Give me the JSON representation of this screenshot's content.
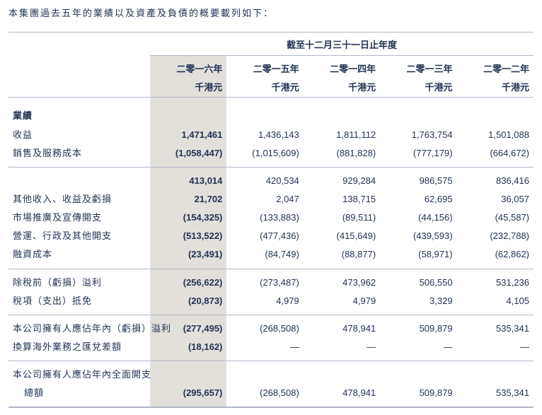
{
  "intro": "本集團過去五年的業績以及資產及負債的概要載列如下：",
  "table": {
    "super_header": "截至十二月三十一日止年度",
    "col_headers": [
      "二零一六年",
      "二零一五年",
      "二零一四年",
      "二零一三年",
      "二零一二年"
    ],
    "unit": "千港元",
    "highlight_col_index": 0,
    "styling": {
      "text_color": "#223355",
      "border_color": "#b0b6c8",
      "highlight_bg": "#e3e0db",
      "font_size_pt": 10,
      "bold_first_data_col": true
    },
    "rows": [
      {
        "type": "spacer"
      },
      {
        "type": "section",
        "label": "業績"
      },
      {
        "label": "收益",
        "values": [
          "1,471,461",
          "1,436,143",
          "1,811,112",
          "1,763,754",
          "1,501,088"
        ]
      },
      {
        "label": "銷售及服務成本",
        "values": [
          "(1,058,447)",
          "(1,015,609)",
          "(881,828)",
          "(777,179)",
          "(664,672)"
        ]
      },
      {
        "type": "sep"
      },
      {
        "type": "sep-top"
      },
      {
        "label": "",
        "values": [
          "413,014",
          "420,534",
          "929,284",
          "986,575",
          "836,416"
        ]
      },
      {
        "label": "其他收入、收益及虧損",
        "values": [
          "21,702",
          "2,047",
          "138,715",
          "62,695",
          "36,057"
        ]
      },
      {
        "label": "市場推廣及宣傳開支",
        "values": [
          "(154,325)",
          "(133,883)",
          "(89,511)",
          "(44,156)",
          "(45,587)"
        ]
      },
      {
        "label": "營運、行政及其他開支",
        "values": [
          "(513,522)",
          "(477,436)",
          "(415,649)",
          "(439,593)",
          "(232,788)"
        ]
      },
      {
        "label": "融資成本",
        "values": [
          "(23,491)",
          "(84,749)",
          "(88,877)",
          "(58,971)",
          "(62,862)"
        ]
      },
      {
        "type": "sep"
      },
      {
        "type": "sep-top"
      },
      {
        "label": "除稅前（虧損）溢利",
        "values": [
          "(256,622)",
          "(273,487)",
          "473,962",
          "506,550",
          "531,236"
        ]
      },
      {
        "label": "稅項（支出）抵免",
        "values": [
          "(20,873)",
          "4,979",
          "4,979",
          "3,329",
          "4,105"
        ]
      },
      {
        "type": "sep"
      },
      {
        "type": "sep-top"
      },
      {
        "label": "本公司擁有人應佔年內（虧損）溢利",
        "values": [
          "(277,495)",
          "(268,508)",
          "478,941",
          "509,879",
          "535,341"
        ]
      },
      {
        "label": "換算海外業務之匯兌差額",
        "values": [
          "(18,162)",
          "—",
          "—",
          "—",
          "—"
        ]
      },
      {
        "type": "sep"
      },
      {
        "type": "sep-top"
      },
      {
        "label": "本公司擁有人應佔年內全面開支",
        "values": [
          "",
          "",
          "",
          "",
          ""
        ]
      },
      {
        "label": "總額",
        "indent": true,
        "values": [
          "(295,657)",
          "(268,508)",
          "478,941",
          "509,879",
          "535,341"
        ]
      },
      {
        "type": "sep"
      }
    ]
  }
}
